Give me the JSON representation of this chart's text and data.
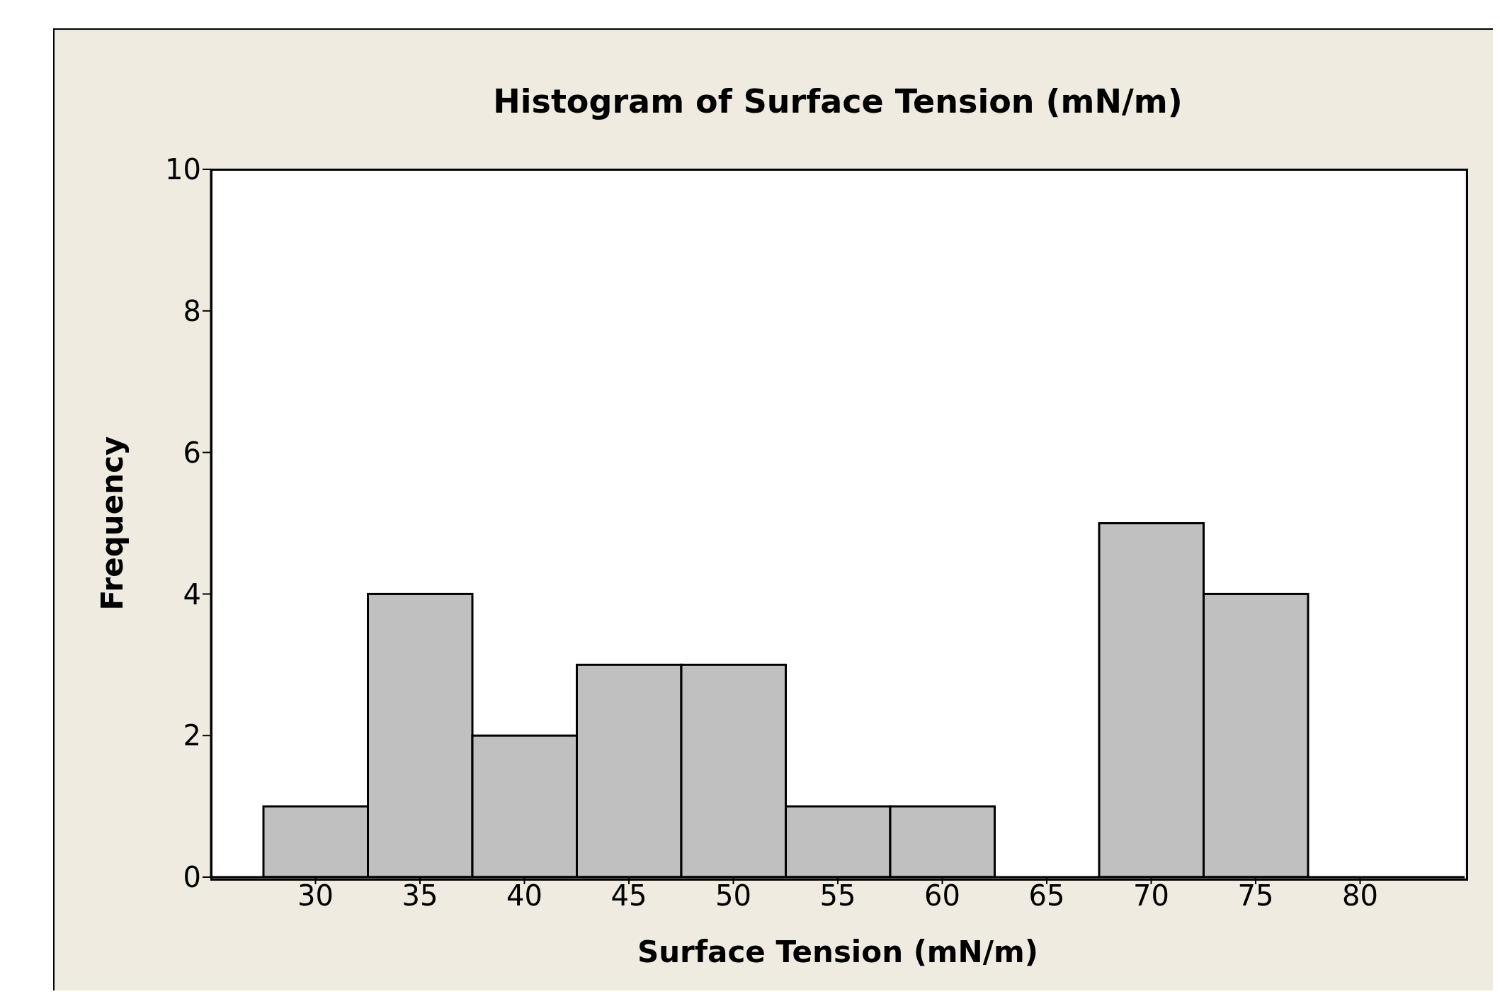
{
  "chart_data": {
    "type": "histogram",
    "title": "Histogram of Surface Tension (mN/m)",
    "xlabel": "Surface Tension (mN/m)",
    "ylabel": "Frequency",
    "bins": [
      27.5,
      32.5,
      37.5,
      42.5,
      47.5,
      52.5,
      57.5,
      62.5,
      67.5,
      72.5,
      77.5
    ],
    "values": [
      1,
      4,
      2,
      3,
      3,
      1,
      1,
      0,
      5,
      4
    ],
    "color": "#c0c0c0",
    "xlim": [
      25,
      85
    ],
    "xticks": [
      30,
      35,
      40,
      45,
      50,
      55,
      60,
      65,
      70,
      75,
      80
    ],
    "ylim": [
      0,
      10
    ],
    "yticks": [
      0,
      2,
      4,
      6,
      8,
      10
    ],
    "grid": false
  }
}
